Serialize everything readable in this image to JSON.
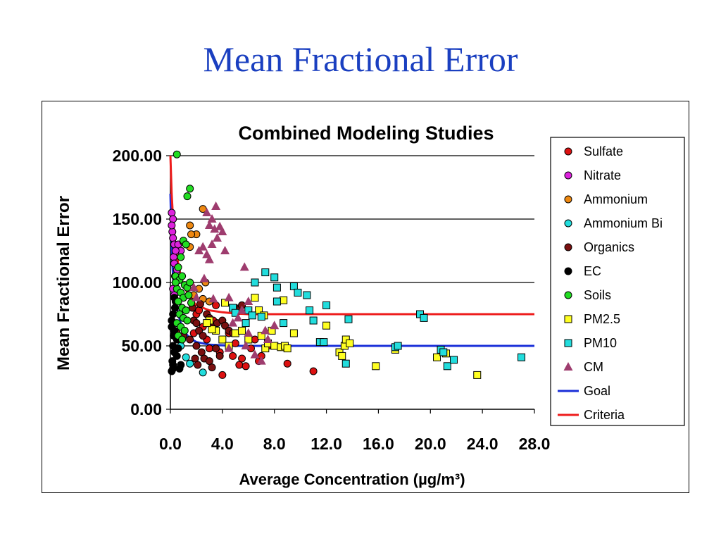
{
  "slide": {
    "title": "Mean Fractional Error"
  },
  "chart_data": {
    "type": "scatter",
    "title": "Combined Modeling Studies",
    "xlabel": "Average Concentration (µg/m³)",
    "ylabel": "Mean Fractional Error",
    "xlim": [
      0,
      28
    ],
    "ylim": [
      0,
      200
    ],
    "x_ticks": [
      "0.0",
      "4.0",
      "8.0",
      "12.0",
      "16.0",
      "20.0",
      "24.0",
      "28.0"
    ],
    "y_ticks": [
      "0.00",
      "50.00",
      "100.00",
      "150.00",
      "200.00"
    ],
    "grid": "horizontal",
    "legend_position": "right",
    "series": [
      {
        "name": "Sulfate",
        "marker": "circle",
        "color": "#dd1111",
        "points": [
          [
            1.8,
            60
          ],
          [
            2.0,
            75
          ],
          [
            2.5,
            65
          ],
          [
            2.8,
            55
          ],
          [
            3.0,
            48
          ],
          [
            3.3,
            70
          ],
          [
            3.8,
            45
          ],
          [
            4.0,
            27
          ],
          [
            4.5,
            60
          ],
          [
            4.8,
            42
          ],
          [
            5.0,
            52
          ],
          [
            5.3,
            35
          ],
          [
            5.5,
            40
          ],
          [
            5.8,
            34
          ],
          [
            6.2,
            48
          ],
          [
            6.5,
            55
          ],
          [
            6.8,
            38
          ],
          [
            7.0,
            42
          ],
          [
            7.5,
            50
          ],
          [
            9.0,
            36
          ],
          [
            11.0,
            30
          ],
          [
            3.5,
            82
          ],
          [
            2.2,
            78
          ]
        ]
      },
      {
        "name": "Nitrate",
        "marker": "circle",
        "color": "#dd22dd",
        "points": [
          [
            0.1,
            155
          ],
          [
            0.2,
            150
          ],
          [
            0.15,
            140
          ],
          [
            0.2,
            135
          ],
          [
            0.3,
            130
          ],
          [
            0.25,
            120
          ],
          [
            0.3,
            115
          ],
          [
            0.35,
            105
          ],
          [
            0.4,
            100
          ],
          [
            0.2,
            95
          ],
          [
            0.5,
            110
          ],
          [
            0.6,
            130
          ],
          [
            0.8,
            125
          ],
          [
            0.3,
            90
          ],
          [
            1.0,
            88
          ],
          [
            0.4,
            125
          ],
          [
            0.1,
            145
          ]
        ]
      },
      {
        "name": "Ammonium",
        "marker": "circle",
        "color": "#ee8811",
        "points": [
          [
            1.5,
            145
          ],
          [
            2.5,
            158
          ],
          [
            2.0,
            138
          ],
          [
            1.0,
            132
          ],
          [
            1.5,
            128
          ],
          [
            2.7,
            100
          ],
          [
            2.2,
            95
          ],
          [
            1.8,
            90
          ],
          [
            2.5,
            87
          ],
          [
            3.0,
            85
          ],
          [
            1.6,
            138
          ]
        ]
      },
      {
        "name": "Ammonium Bi",
        "marker": "circle",
        "color": "#22dddd",
        "points": [
          [
            1.2,
            41
          ],
          [
            1.5,
            36
          ],
          [
            2.5,
            29
          ],
          [
            0.8,
            50
          ]
        ]
      },
      {
        "name": "Organics",
        "marker": "circle",
        "color": "#7a1010",
        "points": [
          [
            0.5,
            60
          ],
          [
            1.0,
            58
          ],
          [
            1.5,
            55
          ],
          [
            1.8,
            70
          ],
          [
            2.0,
            68
          ],
          [
            2.2,
            62
          ],
          [
            2.5,
            58
          ],
          [
            2.8,
            75
          ],
          [
            3.0,
            72
          ],
          [
            3.3,
            65
          ],
          [
            3.6,
            68
          ],
          [
            4.0,
            70
          ],
          [
            4.2,
            66
          ],
          [
            4.5,
            62
          ],
          [
            5.0,
            80
          ],
          [
            5.2,
            78
          ],
          [
            5.5,
            82
          ],
          [
            2.0,
            50
          ],
          [
            2.4,
            45
          ],
          [
            2.6,
            40
          ],
          [
            3.0,
            38
          ],
          [
            3.2,
            33
          ],
          [
            3.5,
            48
          ],
          [
            4.8,
            60
          ],
          [
            1.7,
            80
          ],
          [
            2.3,
            83
          ],
          [
            3.8,
            42
          ],
          [
            1.9,
            40
          ],
          [
            2.1,
            35
          ]
        ]
      },
      {
        "name": "EC",
        "marker": "circle",
        "color": "#000000",
        "points": [
          [
            0.1,
            30
          ],
          [
            0.2,
            32
          ],
          [
            0.15,
            38
          ],
          [
            0.3,
            45
          ],
          [
            0.2,
            50
          ],
          [
            0.25,
            58
          ],
          [
            0.3,
            62
          ],
          [
            0.1,
            70
          ],
          [
            0.2,
            75
          ],
          [
            0.35,
            80
          ],
          [
            0.4,
            85
          ],
          [
            0.3,
            88
          ],
          [
            0.5,
            42
          ],
          [
            0.6,
            48
          ],
          [
            0.8,
            35
          ],
          [
            0.5,
            55
          ],
          [
            0.1,
            65
          ],
          [
            0.2,
            35
          ],
          [
            0.7,
            32
          ]
        ]
      },
      {
        "name": "Soils",
        "marker": "circle",
        "color": "#22dd22",
        "points": [
          [
            0.5,
            201
          ],
          [
            1.5,
            174
          ],
          [
            1.3,
            168
          ],
          [
            1.0,
            133
          ],
          [
            1.2,
            130
          ],
          [
            0.8,
            120
          ],
          [
            0.6,
            112
          ],
          [
            0.4,
            105
          ],
          [
            0.7,
            102
          ],
          [
            0.9,
            105
          ],
          [
            1.1,
            98
          ],
          [
            1.3,
            96
          ],
          [
            0.5,
            95
          ],
          [
            0.8,
            92
          ],
          [
            1.0,
            88
          ],
          [
            1.4,
            90
          ],
          [
            0.6,
            85
          ],
          [
            0.9,
            80
          ],
          [
            1.2,
            78
          ],
          [
            0.7,
            75
          ],
          [
            1.0,
            72
          ],
          [
            1.3,
            70
          ],
          [
            0.5,
            68
          ],
          [
            0.8,
            65
          ],
          [
            1.1,
            62
          ],
          [
            0.6,
            58
          ],
          [
            0.9,
            55
          ],
          [
            0.4,
            100
          ],
          [
            1.6,
            84
          ],
          [
            1.5,
            100
          ]
        ]
      },
      {
        "name": "PM2.5",
        "marker": "square",
        "color": "#ffff22",
        "points": [
          [
            3.0,
            70
          ],
          [
            4.2,
            84
          ],
          [
            4.0,
            55
          ],
          [
            4.5,
            50
          ],
          [
            5.0,
            60
          ],
          [
            5.5,
            62
          ],
          [
            6.0,
            55
          ],
          [
            6.5,
            88
          ],
          [
            7.0,
            58
          ],
          [
            7.3,
            48
          ],
          [
            7.5,
            52
          ],
          [
            7.8,
            62
          ],
          [
            8.0,
            50
          ],
          [
            8.5,
            49
          ],
          [
            8.8,
            50
          ],
          [
            9.0,
            48
          ],
          [
            9.5,
            60
          ],
          [
            3.5,
            62
          ],
          [
            3.2,
            63
          ],
          [
            2.8,
            68
          ],
          [
            12.0,
            66
          ],
          [
            13.0,
            45
          ],
          [
            13.2,
            42
          ],
          [
            13.4,
            50
          ],
          [
            13.5,
            55
          ],
          [
            13.8,
            52
          ],
          [
            15.8,
            34
          ],
          [
            17.3,
            47
          ],
          [
            20.5,
            41
          ],
          [
            21.2,
            44
          ],
          [
            23.6,
            27
          ],
          [
            8.7,
            86
          ],
          [
            6.8,
            78
          ],
          [
            7.2,
            74
          ],
          [
            4.8,
            80
          ]
        ]
      },
      {
        "name": "PM10",
        "marker": "square",
        "color": "#22dddd",
        "points": [
          [
            6.5,
            100
          ],
          [
            7.3,
            108
          ],
          [
            8.0,
            104
          ],
          [
            8.2,
            96
          ],
          [
            9.5,
            97
          ],
          [
            9.8,
            92
          ],
          [
            10.5,
            90
          ],
          [
            10.7,
            78
          ],
          [
            11.0,
            70
          ],
          [
            11.5,
            53
          ],
          [
            11.8,
            53
          ],
          [
            12.0,
            82
          ],
          [
            13.5,
            36
          ],
          [
            13.7,
            71
          ],
          [
            4.8,
            80
          ],
          [
            5.0,
            76
          ],
          [
            6.0,
            78
          ],
          [
            6.3,
            74
          ],
          [
            5.8,
            68
          ],
          [
            7.0,
            73
          ],
          [
            8.2,
            85
          ],
          [
            8.7,
            68
          ],
          [
            17.3,
            49
          ],
          [
            17.5,
            50
          ],
          [
            19.2,
            75
          ],
          [
            19.5,
            72
          ],
          [
            20.8,
            47
          ],
          [
            21.0,
            45
          ],
          [
            21.3,
            34
          ],
          [
            21.8,
            39
          ],
          [
            27.0,
            41
          ]
        ]
      },
      {
        "name": "CM",
        "marker": "triangle",
        "color": "#9e3c6e",
        "points": [
          [
            3.5,
            160
          ],
          [
            3.2,
            150
          ],
          [
            2.8,
            155
          ],
          [
            3.0,
            145
          ],
          [
            3.4,
            142
          ],
          [
            3.8,
            144
          ],
          [
            4.0,
            140
          ],
          [
            3.6,
            135
          ],
          [
            2.5,
            128
          ],
          [
            2.2,
            125
          ],
          [
            2.8,
            122
          ],
          [
            3.2,
            130
          ],
          [
            4.2,
            125
          ],
          [
            3.0,
            118
          ],
          [
            5.7,
            112
          ],
          [
            2.6,
            103
          ],
          [
            3.3,
            87
          ],
          [
            4.5,
            88
          ],
          [
            6.0,
            85
          ],
          [
            5.5,
            78
          ],
          [
            5.2,
            72
          ],
          [
            4.8,
            68
          ],
          [
            8.0,
            66
          ],
          [
            6.0,
            60
          ],
          [
            7.5,
            55
          ],
          [
            7.3,
            62
          ],
          [
            5.8,
            50
          ],
          [
            4.5,
            48
          ],
          [
            6.5,
            43
          ],
          [
            7.0,
            38
          ],
          [
            2.0,
            88
          ],
          [
            1.8,
            96
          ]
        ]
      }
    ],
    "lines": [
      {
        "name": "Goal",
        "color": "#1a2fd8",
        "points": [
          [
            0.0,
            170
          ],
          [
            0.05,
            150
          ],
          [
            0.1,
            130
          ],
          [
            0.15,
            115
          ],
          [
            0.2,
            105
          ],
          [
            0.3,
            92
          ],
          [
            0.4,
            85
          ],
          [
            0.6,
            75
          ],
          [
            0.8,
            68
          ],
          [
            1.0,
            62
          ],
          [
            1.5,
            56
          ],
          [
            2.0,
            53
          ],
          [
            3.0,
            51
          ],
          [
            4.0,
            50.5
          ],
          [
            5.0,
            50
          ],
          [
            28.0,
            50
          ]
        ]
      },
      {
        "name": "Criteria",
        "color": "#ee1c1c",
        "points": [
          [
            0.0,
            200
          ],
          [
            0.05,
            185
          ],
          [
            0.1,
            170
          ],
          [
            0.15,
            160
          ],
          [
            0.2,
            150
          ],
          [
            0.3,
            138
          ],
          [
            0.4,
            128
          ],
          [
            0.6,
            115
          ],
          [
            0.8,
            105
          ],
          [
            1.0,
            98
          ],
          [
            1.5,
            88
          ],
          [
            2.0,
            82
          ],
          [
            3.0,
            78
          ],
          [
            4.0,
            76.5
          ],
          [
            5.0,
            75.5
          ],
          [
            6.0,
            75
          ],
          [
            28.0,
            75
          ]
        ]
      }
    ]
  }
}
